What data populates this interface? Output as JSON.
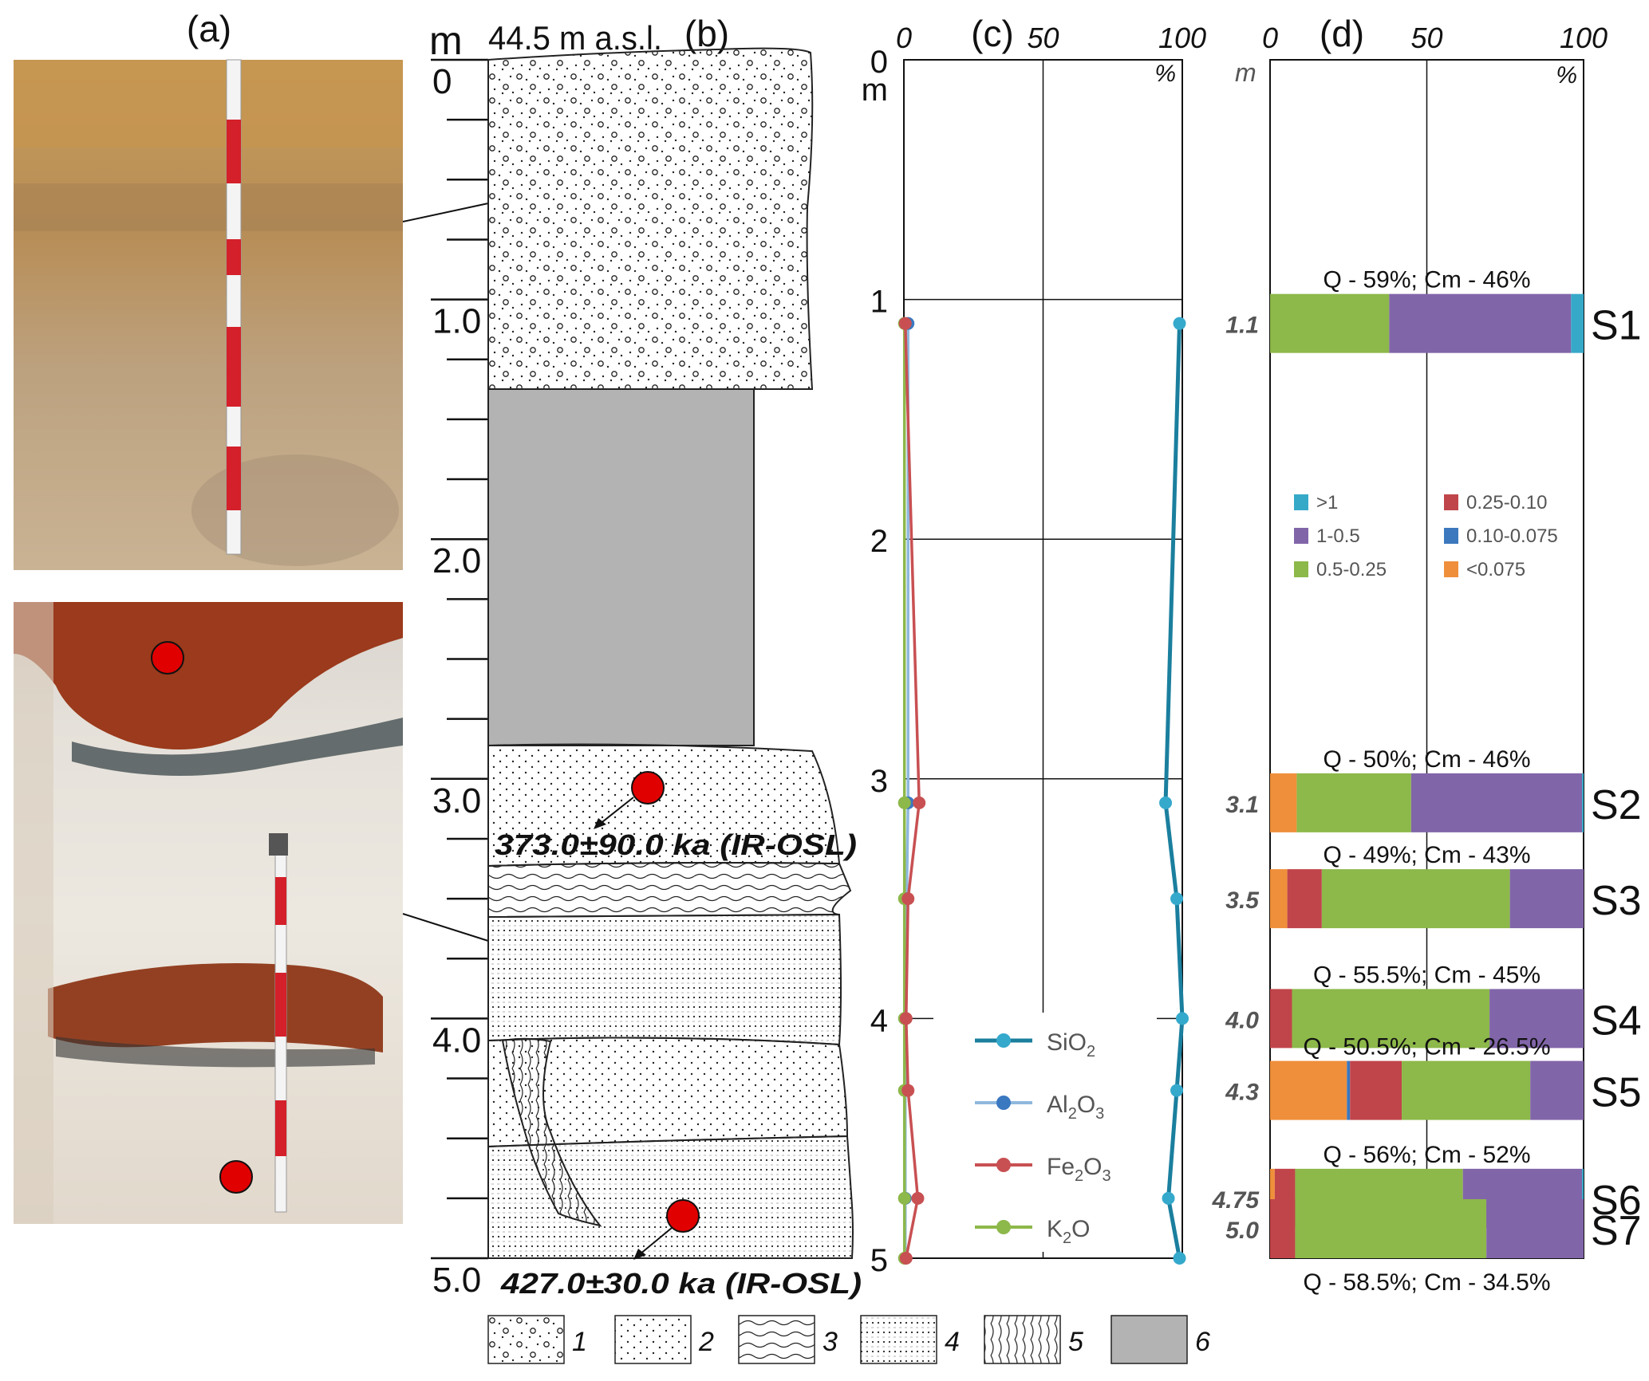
{
  "panels": {
    "a": "(a)",
    "b": "(b)",
    "c": "(c)",
    "d": "(d)"
  },
  "colors": {
    "sio2": "#1b7f9e",
    "al2o3": "#8fb8de",
    "fe2o3": "#c85052",
    "k2o": "#8db84a",
    "marker_sio2": "#35a9cc",
    "marker_al2o3": "#3a78c0",
    "gs_gt1": "#36a9c9",
    "gs_1_05": "#8165a9",
    "gs_05_025": "#8db84a",
    "gs_025_010": "#c0454b",
    "gs_010_0075": "#3b78bd",
    "gs_lt0075": "#ef8f3b",
    "unit6": "#b3b3b3",
    "osl_point": "#e00000"
  },
  "column": {
    "unit_label": "m",
    "elevation": "44.5 m a.s.l.",
    "depth_ticks": [
      "0",
      "1.0",
      "2.0",
      "3.0",
      "4.0",
      "5.0"
    ],
    "osl_dates": [
      "373.0±90.0 ka (IR-OSL)",
      "427.0±30.0 ka (IR-OSL)"
    ],
    "legend_numbers": [
      "1",
      "2",
      "3",
      "4",
      "5",
      "6"
    ]
  },
  "chart_data": [
    {
      "type": "line",
      "panel": "(c)",
      "x_axis_ticks": [
        "0",
        "50",
        "100"
      ],
      "x_unit": "%",
      "y_unit": "m",
      "y_ticks": [
        "0",
        "1",
        "2",
        "3",
        "4",
        "5"
      ],
      "xlim": [
        0,
        100
      ],
      "ylim": [
        0,
        5
      ],
      "grid": true,
      "legend_position": "bottom-center",
      "depths": [
        1.1,
        3.1,
        3.5,
        4.0,
        4.3,
        4.75,
        5.0
      ],
      "series": [
        {
          "name": "SiO",
          "subscript": "2",
          "key": "sio2",
          "values": [
            99,
            94,
            98,
            100,
            98,
            95,
            99
          ]
        },
        {
          "name": "Al",
          "subscript": "2",
          "name2": "O",
          "subscript2": "3",
          "key": "al2o3",
          "values": [
            1.5,
            1.5,
            1,
            0.5,
            0.5,
            0.5,
            0.5
          ]
        },
        {
          "name": "Fe",
          "subscript": "2",
          "name2": "O",
          "subscript2": "3",
          "key": "fe2o3",
          "values": [
            0.5,
            5.5,
            1.5,
            0.8,
            1.5,
            5,
            0.8
          ]
        },
        {
          "name": "K",
          "subscript": "2",
          "name2": "O",
          "subscript2": "",
          "key": "k2o",
          "values": [
            0.2,
            0.2,
            0.2,
            0.2,
            0.2,
            0.2,
            0.2
          ]
        }
      ]
    },
    {
      "type": "bar",
      "panel": "(d)",
      "orientation": "horizontal-stacked",
      "x_axis_ticks": [
        "0",
        "50",
        "100"
      ],
      "x_unit": "%",
      "y_unit": "m",
      "xlim": [
        0,
        100
      ],
      "legend_position": "middle",
      "legend": [
        {
          "label": ">1",
          "key": "gs_gt1"
        },
        {
          "label": "1-0.5",
          "key": "gs_1_05"
        },
        {
          "label": "0.5-0.25",
          "key": "gs_05_025"
        },
        {
          "label": "0.25-0.10",
          "key": "gs_025_010"
        },
        {
          "label": "0.10-0.075",
          "key": "gs_010_0075"
        },
        {
          "label": "<0.075",
          "key": "gs_lt0075"
        }
      ],
      "stack_order": [
        "gs_lt0075",
        "gs_010_0075",
        "gs_025_010",
        "gs_05_025",
        "gs_1_05",
        "gs_gt1"
      ],
      "samples": [
        {
          "id": "S1",
          "depth": "1.1",
          "depth_value": 1.1,
          "annotation": "Q - 59%; Cm - 46%",
          "values": {
            "gs_lt0075": 0,
            "gs_010_0075": 0,
            "gs_025_010": 0,
            "gs_05_025": 38,
            "gs_1_05": 58,
            "gs_gt1": 4
          }
        },
        {
          "id": "S2",
          "depth": "3.1",
          "depth_value": 3.1,
          "annotation": "Q - 50%; Cm - 46%",
          "values": {
            "gs_lt0075": 8.5,
            "gs_010_0075": 0,
            "gs_025_010": 0,
            "gs_05_025": 36.5,
            "gs_1_05": 54.5,
            "gs_gt1": 0.5
          }
        },
        {
          "id": "S3",
          "depth": "3.5",
          "depth_value": 3.5,
          "annotation": "Q - 49%; Cm - 43%",
          "values": {
            "gs_lt0075": 5.5,
            "gs_010_0075": 0,
            "gs_025_010": 11,
            "gs_05_025": 60,
            "gs_1_05": 23.5,
            "gs_gt1": 0
          }
        },
        {
          "id": "S4",
          "depth": "4.0",
          "depth_value": 4.0,
          "annotation": "Q - 55.5%; Cm - 45%",
          "values": {
            "gs_lt0075": 0,
            "gs_010_0075": 0,
            "gs_025_010": 7,
            "gs_05_025": 63,
            "gs_1_05": 30,
            "gs_gt1": 0
          }
        },
        {
          "id": "S5",
          "depth": "4.3",
          "depth_value": 4.3,
          "annotation": "Q - 50.5%; Cm - 26.5%",
          "values": {
            "gs_lt0075": 24.5,
            "gs_010_0075": 1,
            "gs_025_010": 16.5,
            "gs_05_025": 41,
            "gs_1_05": 17,
            "gs_gt1": 0
          }
        },
        {
          "id": "S6",
          "depth": "4.75",
          "depth_value": 4.75,
          "annotation": "Q - 56%; Cm - 52%",
          "values": {
            "gs_lt0075": 1.5,
            "gs_010_0075": 0,
            "gs_025_010": 6.5,
            "gs_05_025": 53.5,
            "gs_1_05": 38,
            "gs_gt1": 0.5
          }
        },
        {
          "id": "S7",
          "depth": "5.0",
          "depth_value": 5.0,
          "annotation": "Q - 58.5%; Cm - 34.5%",
          "values": {
            "gs_lt0075": 0,
            "gs_010_0075": 0,
            "gs_025_010": 8,
            "gs_05_025": 61,
            "gs_1_05": 31,
            "gs_gt1": 0
          }
        }
      ]
    }
  ]
}
